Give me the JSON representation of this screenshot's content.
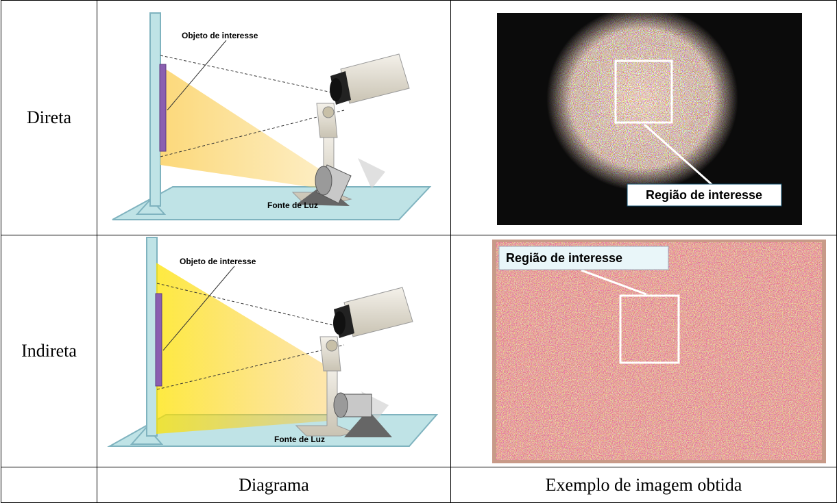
{
  "rows": [
    {
      "label": "Direta",
      "diagram": {
        "object_label": "Objeto de interesse",
        "light_label": "Fonte de Luz"
      },
      "photo": {
        "roi_label": "Região de interesse"
      }
    },
    {
      "label": "Indireta",
      "diagram": {
        "object_label": "Objeto de interesse",
        "light_label": "Fonte de Luz"
      },
      "photo": {
        "roi_label": "Região de interesse"
      }
    }
  ],
  "footer": {
    "diagram_header": "Diagrama",
    "image_header": "Exemplo de imagem obtida"
  }
}
